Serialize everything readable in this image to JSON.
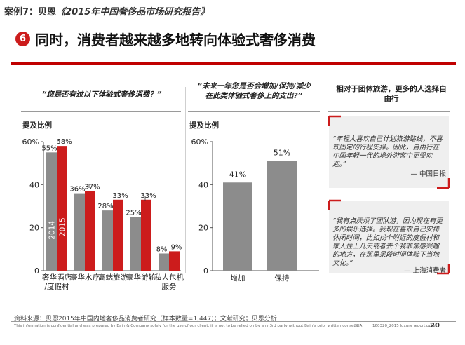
{
  "header": {
    "case_label": "案例7：贝恩",
    "report_title": "《2015年中国奢侈品市场研究报告》",
    "badge_number": "6",
    "headline": "同时，消费者越来越多地转向体验式奢侈消费"
  },
  "panel_left": {
    "title": "“您是否有过以下体验式奢侈消费？”"
  },
  "panel_mid": {
    "title_line1": "“未来一年您是否会增加/保持/减少",
    "title_line2": "在此类体验式奢侈上的支出?”"
  },
  "panel_right": {
    "title_line1": "相对于团体旅游，更多的人选择自",
    "title_line2": "由行"
  },
  "quotes": [
    {
      "lines": [
        "“年轻人喜欢自己计划旅游路线，不喜",
        "欢固定的行程安排。因此，自由行在",
        "中国年轻一代的境外游客中更受欢",
        "迎。”"
      ],
      "source": "— 中国日报"
    },
    {
      "lines": [
        "“我有点厌烦了团队游，因为现在有更",
        "多的娱乐选择。我现在喜欢自己安排",
        "休闲时间，比如找个附近的度假村和",
        "家人住上几天或者去个我非常感兴趣",
        "的地方，在那里呆段时间体验下当地",
        "文化。”"
      ],
      "source": "— 上海消费者"
    }
  ],
  "footer": {
    "source": "资料来源：贝恩2015年中国内地奢侈品消费者研究（样本数量=1,447)；文献研究；贝恩分析",
    "disclaimer": "This information is confidential and was prepared by Bain & Company solely for the use of our client; it is not to be relied on by any 3rd party without Bain's prior written consent.",
    "company": "SHA",
    "report": "160320_2015 luxury report.pptx",
    "page": "20"
  },
  "colors": {
    "accent_red": "#cc1c1c",
    "bar_grey": "#8c8c8c",
    "header_rule": "#c00000"
  },
  "chart_data": [
    {
      "type": "bar",
      "ylabel": "提及比例",
      "ylim": [
        0,
        60
      ],
      "yticks": [
        "0",
        "20",
        "40",
        "60%"
      ],
      "categories": [
        [
          "奢华酒店",
          "/度假村"
        ],
        [
          "豪华水疗"
        ],
        [
          "高端旅游"
        ],
        [
          "豪华游轮"
        ],
        [
          "私人包机",
          "服务"
        ]
      ],
      "series": [
        {
          "name": "2014",
          "values": [
            55,
            36,
            28,
            25,
            8
          ],
          "labels": [
            "55%",
            "36%",
            "28%",
            "25%",
            "8%"
          ]
        },
        {
          "name": "2015",
          "values": [
            58,
            37,
            33,
            33,
            9
          ],
          "labels": [
            "58%",
            "37%",
            "33%",
            "33%",
            "9%"
          ]
        }
      ]
    },
    {
      "type": "bar",
      "ylabel": "提及比例",
      "ylim": [
        0,
        60
      ],
      "yticks": [
        "0",
        "20",
        "40",
        "60%"
      ],
      "categories": [
        [
          "增加"
        ],
        [
          "保持"
        ]
      ],
      "values": [
        41,
        51
      ],
      "labels": [
        "41%",
        "51%"
      ]
    }
  ]
}
